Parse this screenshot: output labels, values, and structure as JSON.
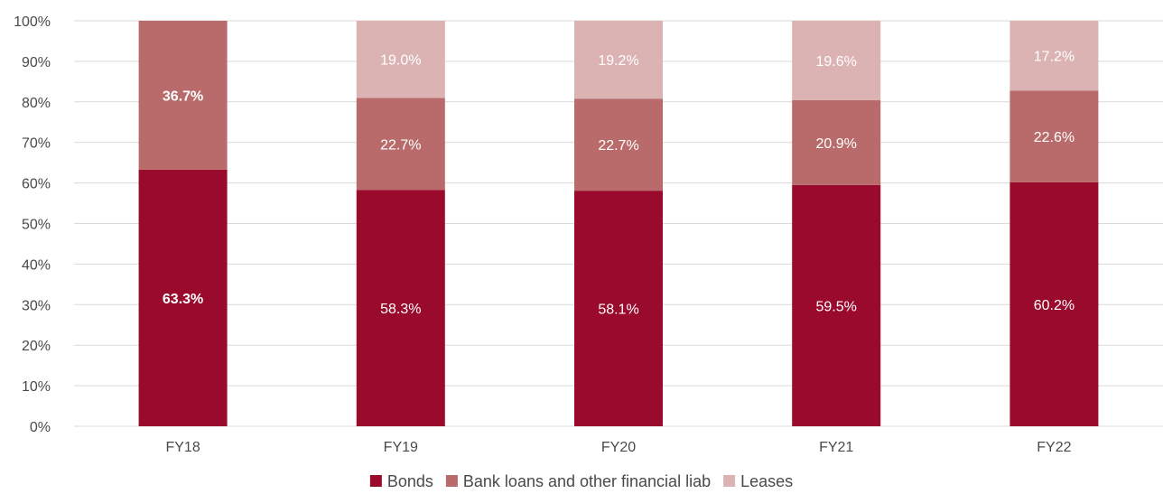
{
  "chart_data": {
    "type": "bar",
    "stacked": true,
    "categories": [
      "FY18",
      "FY19",
      "FY20",
      "FY21",
      "FY22"
    ],
    "series": [
      {
        "name": "Bonds",
        "color": "#990a2c",
        "label_color": "#ffffff",
        "values": [
          63.3,
          58.3,
          58.1,
          59.5,
          60.2
        ],
        "labels": [
          "63.3%",
          "58.3%",
          "58.1%",
          "59.5%",
          "60.2%"
        ],
        "label_bold": [
          true,
          false,
          false,
          false,
          false
        ]
      },
      {
        "name": "Bank loans and other financial liab",
        "color": "#b96b6b",
        "label_color": "#ffffff",
        "values": [
          36.7,
          22.7,
          22.7,
          20.9,
          22.6
        ],
        "labels": [
          "36.7%",
          "22.7%",
          "22.7%",
          "20.9%",
          "22.6%"
        ],
        "label_bold": [
          true,
          false,
          false,
          false,
          false
        ]
      },
      {
        "name": "Leases",
        "color": "#dcb3b3",
        "label_color": "#ffffff",
        "values": [
          0,
          19.0,
          19.2,
          19.6,
          17.2
        ],
        "labels": [
          "",
          "19.0%",
          "19.2%",
          "19.6%",
          "17.2%"
        ],
        "label_bold": [
          false,
          false,
          false,
          false,
          false
        ]
      }
    ],
    "ylim": [
      0,
      100
    ],
    "yticks": [
      0,
      10,
      20,
      30,
      40,
      50,
      60,
      70,
      80,
      90,
      100
    ],
    "ytick_labels": [
      "0%",
      "10%",
      "20%",
      "30%",
      "40%",
      "50%",
      "60%",
      "70%",
      "80%",
      "90%",
      "100%"
    ],
    "grid": true,
    "grid_color": "#d9d9d9",
    "legend_position": "bottom",
    "title": "",
    "xlabel": "",
    "ylabel": ""
  }
}
